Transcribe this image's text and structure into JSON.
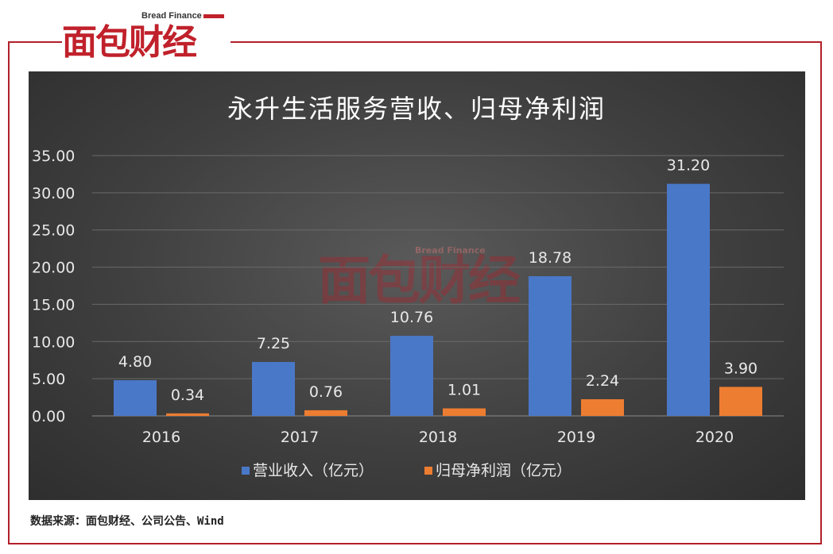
{
  "brand": {
    "english": "Bread Finance",
    "chinese": "面包财经",
    "red": "#c0212b"
  },
  "chart_data": {
    "type": "bar",
    "title": "永升生活服务营收、归母净利润",
    "categories": [
      "2016",
      "2017",
      "2018",
      "2019",
      "2020"
    ],
    "series": [
      {
        "name": "营业收入（亿元）",
        "values": [
          4.8,
          7.25,
          10.76,
          18.78,
          31.2
        ],
        "labels": [
          "4.80",
          "7.25",
          "10.76",
          "18.78",
          "31.20"
        ],
        "color": "#4a78c8"
      },
      {
        "name": "归母净利润（亿元）",
        "values": [
          0.34,
          0.76,
          1.01,
          2.24,
          3.9
        ],
        "labels": [
          "0.34",
          "0.76",
          "1.01",
          "2.24",
          "3.90"
        ],
        "color": "#ed7d31"
      }
    ],
    "ylim": [
      0,
      35
    ],
    "yticks": [
      "0.00",
      "5.00",
      "10.00",
      "15.00",
      "20.00",
      "25.00",
      "30.00",
      "35.00"
    ],
    "grid": true,
    "legend_position": "bottom",
    "watermark": "面包财经"
  },
  "source_note": "数据来源：面包财经、公司公告、Wind"
}
